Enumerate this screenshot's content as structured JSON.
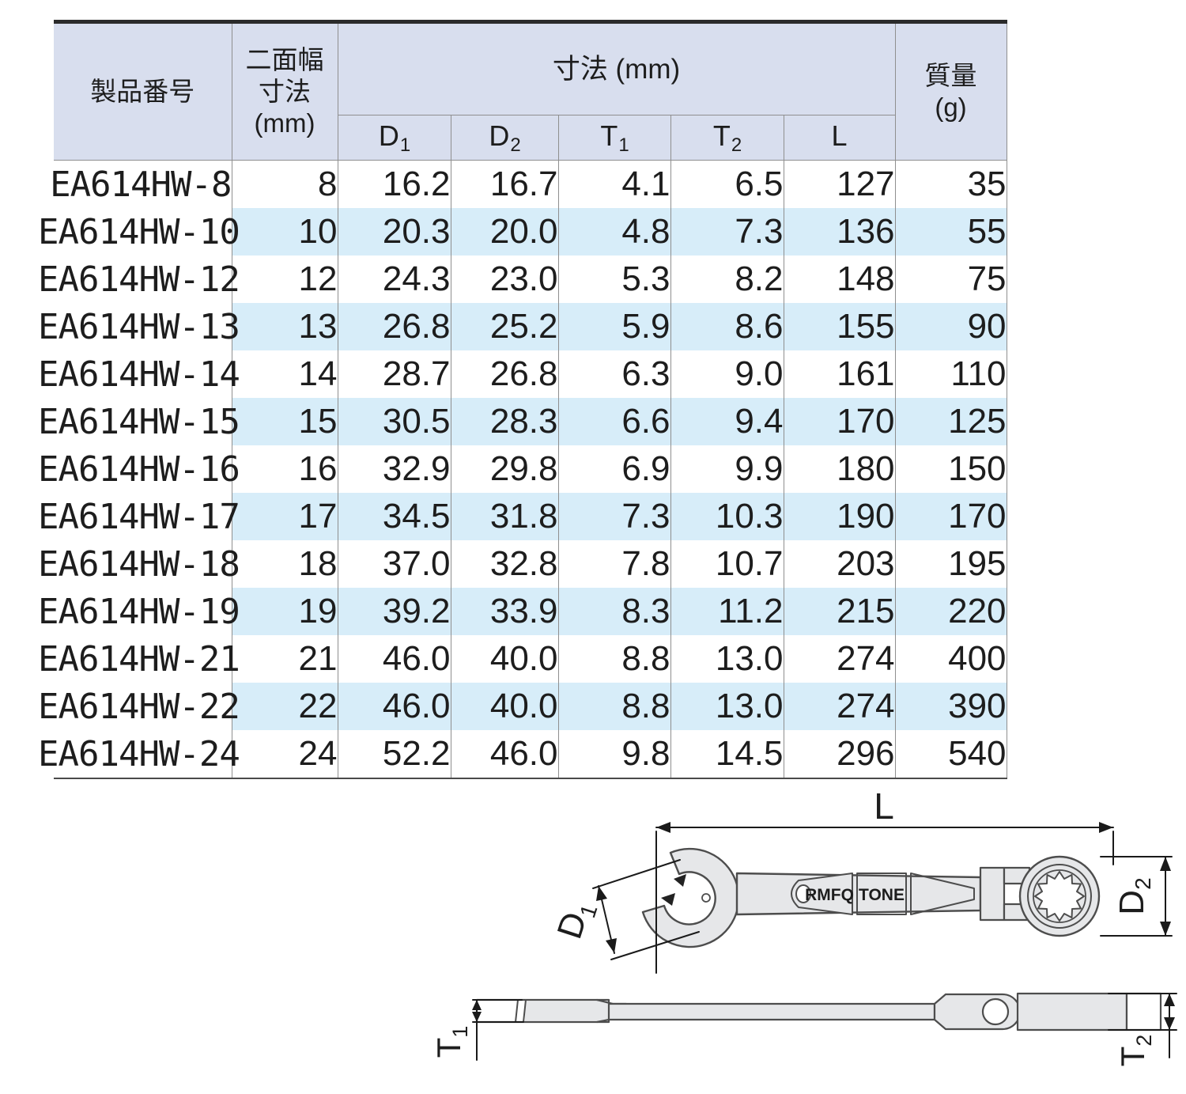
{
  "table": {
    "col_product": "製品番号",
    "col_width_lines": [
      "二面幅",
      "寸法",
      "(mm)"
    ],
    "col_dims_group": "寸法 (mm)",
    "dims": [
      [
        "D",
        "1"
      ],
      [
        "D",
        "2"
      ],
      [
        "T",
        "1"
      ],
      [
        "T",
        "2"
      ],
      [
        "L",
        ""
      ]
    ],
    "col_mass_lines": [
      "質量",
      "(g)"
    ],
    "rows": [
      [
        "EA614HW-8",
        "8",
        "16.2",
        "16.7",
        "4.1",
        "6.5",
        "127",
        "35"
      ],
      [
        "EA614HW-10",
        "10",
        "20.3",
        "20.0",
        "4.8",
        "7.3",
        "136",
        "55"
      ],
      [
        "EA614HW-12",
        "12",
        "24.3",
        "23.0",
        "5.3",
        "8.2",
        "148",
        "75"
      ],
      [
        "EA614HW-13",
        "13",
        "26.8",
        "25.2",
        "5.9",
        "8.6",
        "155",
        "90"
      ],
      [
        "EA614HW-14",
        "14",
        "28.7",
        "26.8",
        "6.3",
        "9.0",
        "161",
        "110"
      ],
      [
        "EA614HW-15",
        "15",
        "30.5",
        "28.3",
        "6.6",
        "9.4",
        "170",
        "125"
      ],
      [
        "EA614HW-16",
        "16",
        "32.9",
        "29.8",
        "6.9",
        "9.9",
        "180",
        "150"
      ],
      [
        "EA614HW-17",
        "17",
        "34.5",
        "31.8",
        "7.3",
        "10.3",
        "190",
        "170"
      ],
      [
        "EA614HW-18",
        "18",
        "37.0",
        "32.8",
        "7.8",
        "10.7",
        "203",
        "195"
      ],
      [
        "EA614HW-19",
        "19",
        "39.2",
        "33.9",
        "8.3",
        "11.2",
        "215",
        "220"
      ],
      [
        "EA614HW-21",
        "21",
        "46.0",
        "40.0",
        "8.8",
        "13.0",
        "274",
        "400"
      ],
      [
        "EA614HW-22",
        "22",
        "46.0",
        "40.0",
        "8.8",
        "13.0",
        "274",
        "390"
      ],
      [
        "EA614HW-24",
        "24",
        "52.2",
        "46.0",
        "9.8",
        "14.5",
        "296",
        "540"
      ]
    ]
  },
  "diagram": {
    "dim_l": "L",
    "dim_d1": [
      "D",
      "1"
    ],
    "dim_d2": [
      "D",
      "2"
    ],
    "dim_t1": [
      "T",
      "1"
    ],
    "dim_t2": [
      "T",
      "2"
    ],
    "marking_left": "RMFQ",
    "marking_right": "TONE"
  },
  "colors": {
    "header_bg": "#d8deee",
    "stripe_bg": "#d7edf9",
    "grid": "#8f8f8f",
    "rule_heavy": "#2b2b2b",
    "rule_bottom": "#4a4a4a",
    "ink": "#1d1d1d",
    "draw_fill": "#e6e7e9",
    "draw_line": "#4d4d4d",
    "dim_line": "#1a1a1a"
  }
}
